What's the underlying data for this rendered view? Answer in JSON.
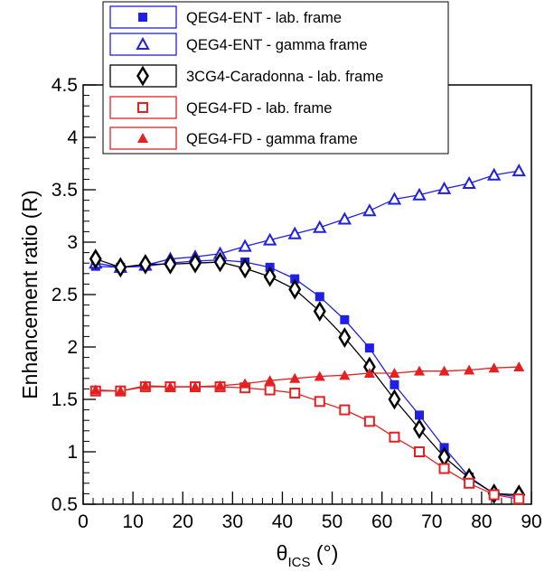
{
  "chart_data": {
    "type": "line",
    "title": "",
    "xlabel": {
      "main": "θ",
      "sub": "ICS",
      "unit": " (°)"
    },
    "ylabel": "Enhancement ratio (R)",
    "xlim": [
      0,
      90
    ],
    "ylim": [
      0.5,
      4.5
    ],
    "x_ticks": [
      "0",
      "10",
      "20",
      "30",
      "40",
      "50",
      "60",
      "70",
      "80",
      "90"
    ],
    "y_ticks": [
      "0.5",
      "1",
      "1.5",
      "2",
      "2.5",
      "3",
      "3.5",
      "4",
      "4.5"
    ],
    "grid": false,
    "legend_position": "top",
    "x": [
      2.5,
      7.5,
      12.5,
      17.5,
      22.5,
      27.5,
      32.5,
      37.5,
      42.5,
      47.5,
      52.5,
      57.5,
      62.5,
      67.5,
      72.5,
      77.5,
      82.5,
      87.5
    ],
    "series": [
      {
        "name": "QEG4-ENT - lab. frame",
        "color": "#1f1fe6",
        "marker": "square-filled",
        "values": [
          2.77,
          2.76,
          2.77,
          2.8,
          2.82,
          2.83,
          2.81,
          2.76,
          2.65,
          2.48,
          2.26,
          1.99,
          1.64,
          1.35,
          1.04,
          0.76,
          0.6,
          0.57
        ]
      },
      {
        "name": "QEG4-ENT - gamma frame",
        "color": "#1f1fe6",
        "marker": "triangle-open",
        "values": [
          2.8,
          2.76,
          2.78,
          2.84,
          2.86,
          2.89,
          2.96,
          3.02,
          3.08,
          3.14,
          3.22,
          3.3,
          3.41,
          3.45,
          3.51,
          3.56,
          3.64,
          3.68
        ]
      },
      {
        "name": "3CG4-Caradonna - lab. frame",
        "color": "#000000",
        "marker": "diamond-open",
        "values": [
          2.84,
          2.76,
          2.79,
          2.79,
          2.8,
          2.81,
          2.75,
          2.67,
          2.55,
          2.34,
          2.09,
          1.81,
          1.5,
          1.22,
          0.95,
          0.75,
          0.6,
          0.59
        ]
      },
      {
        "name": "QEG4-FD - lab. frame",
        "color": "#e62020",
        "marker": "square-open",
        "values": [
          1.58,
          1.58,
          1.62,
          1.62,
          1.62,
          1.62,
          1.61,
          1.59,
          1.56,
          1.48,
          1.4,
          1.29,
          1.14,
          1.0,
          0.84,
          0.7,
          0.59,
          0.55
        ]
      },
      {
        "name": "QEG4-FD - gamma frame",
        "color": "#e62020",
        "marker": "triangle-filled",
        "values": [
          1.59,
          1.58,
          1.63,
          1.62,
          1.62,
          1.63,
          1.65,
          1.68,
          1.7,
          1.72,
          1.73,
          1.75,
          1.75,
          1.77,
          1.77,
          1.78,
          1.8,
          1.81
        ]
      }
    ]
  }
}
